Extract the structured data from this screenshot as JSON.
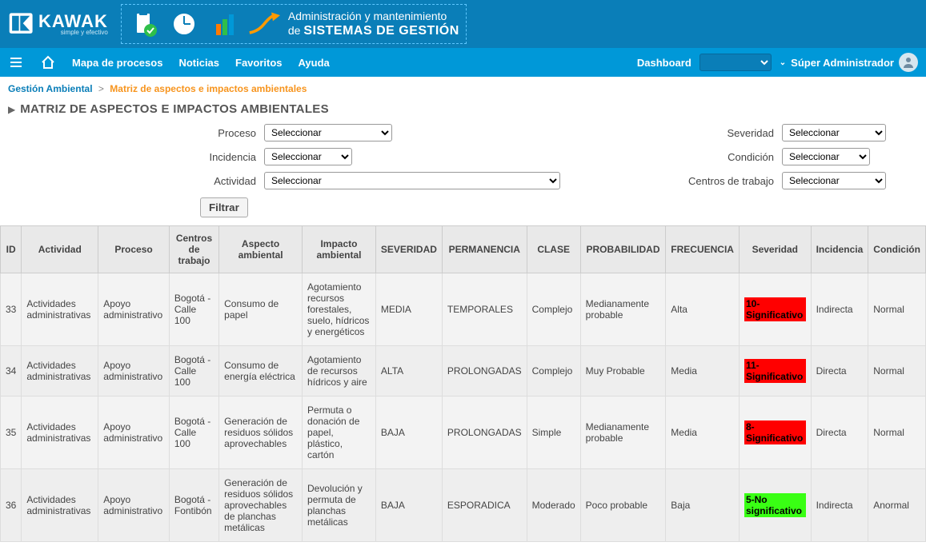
{
  "banner": {
    "brand": "KAWAK",
    "tagline": "simple y efectivo",
    "promo_line1": "Administración y mantenimiento",
    "promo_line2_prefix": "de ",
    "promo_line2_bold": "SISTEMAS DE GESTIÓN"
  },
  "nav": {
    "mapa": "Mapa de procesos",
    "noticias": "Noticias",
    "favoritos": "Favoritos",
    "ayuda": "Ayuda",
    "dashboard_label": "Dashboard",
    "user": "Súper Administrador"
  },
  "crumb": {
    "a": "Gestión Ambiental",
    "b": "Matriz de aspectos e impactos ambientales"
  },
  "title": "MATRIZ DE ASPECTOS E IMPACTOS AMBIENTALES",
  "filters": {
    "proceso_label": "Proceso",
    "incidencia_label": "Incidencia",
    "actividad_label": "Actividad",
    "severidad_label": "Severidad",
    "condicion_label": "Condición",
    "centros_label": "Centros de trabajo",
    "placeholder": "Seleccionar",
    "button": "Filtrar"
  },
  "columns": [
    "ID",
    "Actividad",
    "Proceso",
    "Centros de trabajo",
    "Aspecto ambiental",
    "Impacto ambiental",
    "SEVERIDAD",
    "PERMANENCIA",
    "CLASE",
    "PROBABILIDAD",
    "FRECUENCIA",
    "Severidad",
    "Incidencia",
    "Condición"
  ],
  "rows": [
    {
      "id": "33",
      "actividad": "Actividades administrativas",
      "proceso": "Apoyo administrativo",
      "centros": "Bogotá - Calle 100",
      "aspecto": "Consumo de papel",
      "impacto": "Agotamiento recursos forestales, suelo, hídricos y energéticos",
      "sev": "MEDIA",
      "perm": "TEMPORALES",
      "clase": "Complejo",
      "prob": "Medianamente probable",
      "frec": "Alta",
      "sev2": "10-Significativo",
      "sev2_class": "sev-red",
      "inc": "Indirecta",
      "cond": "Normal"
    },
    {
      "id": "34",
      "actividad": "Actividades administrativas",
      "proceso": "Apoyo administrativo",
      "centros": "Bogotá - Calle 100",
      "aspecto": "Consumo de energía eléctrica",
      "impacto": "Agotamiento de recursos hídricos y aire",
      "sev": "ALTA",
      "perm": "PROLONGADAS",
      "clase": "Complejo",
      "prob": "Muy Probable",
      "frec": "Media",
      "sev2": "11-Significativo",
      "sev2_class": "sev-red",
      "inc": "Directa",
      "cond": "Normal"
    },
    {
      "id": "35",
      "actividad": "Actividades administrativas",
      "proceso": "Apoyo administrativo",
      "centros": "Bogotá - Calle 100",
      "aspecto": "Generación de residuos sólidos aprovechables",
      "impacto": "Permuta o donación de papel, plástico, cartón",
      "sev": "BAJA",
      "perm": "PROLONGADAS",
      "clase": "Simple",
      "prob": "Medianamente probable",
      "frec": "Media",
      "sev2": "8-Significativo",
      "sev2_class": "sev-red",
      "inc": "Directa",
      "cond": "Normal"
    },
    {
      "id": "36",
      "actividad": "Actividades administrativas",
      "proceso": "Apoyo administrativo",
      "centros": "Bogotá - Fontibón",
      "aspecto": "Generación de residuos sólidos aprovechables de planchas metálicas",
      "impacto": "Devolución y permuta de planchas metálicas",
      "sev": "BAJA",
      "perm": "ESPORADICA",
      "clase": "Moderado",
      "prob": "Poco probable",
      "frec": "Baja",
      "sev2": "5-No significativo",
      "sev2_class": "sev-green",
      "inc": "Indirecta",
      "cond": "Anormal"
    }
  ]
}
